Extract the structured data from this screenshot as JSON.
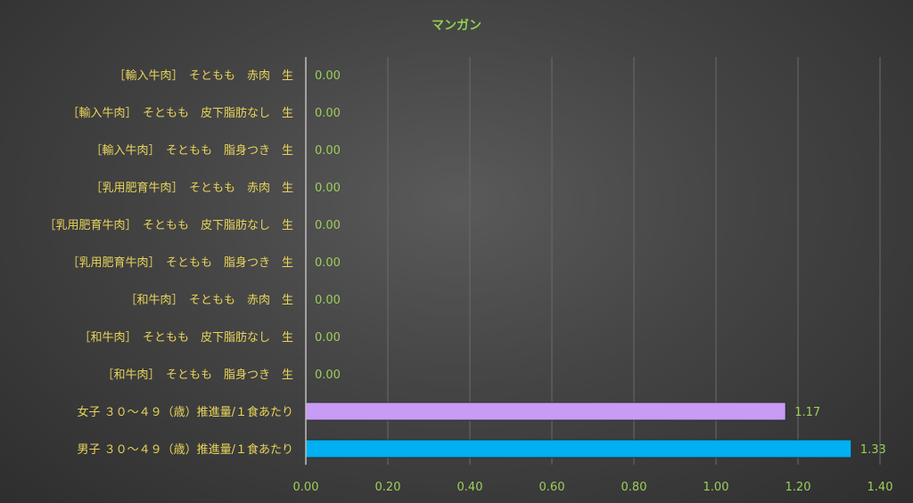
{
  "chart_data": {
    "type": "bar",
    "orientation": "horizontal",
    "title": "マンガン",
    "xlabel": "",
    "ylabel": "",
    "xlim": [
      0,
      1.4
    ],
    "tick_labels": [
      "0.00",
      "0.20",
      "0.40",
      "0.60",
      "0.80",
      "1.00",
      "1.20",
      "1.40"
    ],
    "grid": true,
    "categories": [
      "［輸入牛肉］　そともも　赤肉　生",
      "［輸入牛肉］　そともも　皮下脂肪なし　生",
      "［輸入牛肉］　そともも　脂身つき　生",
      "［乳用肥育牛肉］　そともも　赤肉　生",
      "［乳用肥育牛肉］　そともも　皮下脂肪なし　生",
      "［乳用肥育牛肉］　そともも　脂身つき　生",
      "［和牛肉］　そともも　赤肉　生",
      "［和牛肉］　そともも　皮下脂肪なし　生",
      "［和牛肉］　そともも　脂身つき　生",
      "女子 ３０～４９（歳）推進量/１食あたり",
      "男子 ３０～４９（歳）推進量/１食あたり"
    ],
    "values": [
      0,
      0,
      0,
      0,
      0,
      0,
      0,
      0,
      0,
      1.17,
      1.33
    ],
    "data_labels": [
      "0.00",
      "0.00",
      "0.00",
      "0.00",
      "0.00",
      "0.00",
      "0.00",
      "0.00",
      "0.00",
      "1.17",
      "1.33"
    ],
    "bar_colors": [
      "#8fd14f",
      "#8fd14f",
      "#8fd14f",
      "#8fd14f",
      "#8fd14f",
      "#8fd14f",
      "#8fd14f",
      "#8fd14f",
      "#8fd14f",
      "#c89bf5",
      "#00b0f0"
    ]
  }
}
